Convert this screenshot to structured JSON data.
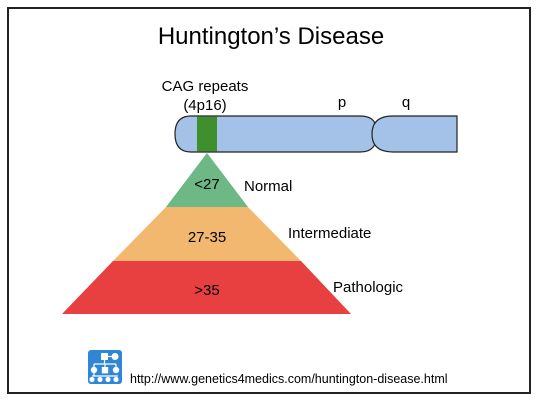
{
  "title": "Huntington’s Disease",
  "gene_label": {
    "line1": "CAG repeats",
    "line2": "(4p16)"
  },
  "chromosome": {
    "p_arm_label": "p",
    "q_arm_label": "q",
    "arm_color": "#a4c1e8",
    "locus_color": "#3f8f2c"
  },
  "tiers": [
    {
      "range": "<27",
      "category": "Normal",
      "color": "#6db884"
    },
    {
      "range": "27-35",
      "category": "Intermediate",
      "color": "#f3b870"
    },
    {
      "range": ">35",
      "category": "Pathologic",
      "color": "#e84040"
    }
  ],
  "footer": {
    "url": "http://www.genetics4medics.com/huntington-disease.html",
    "logo_icon": "pedigree-logo-icon"
  }
}
